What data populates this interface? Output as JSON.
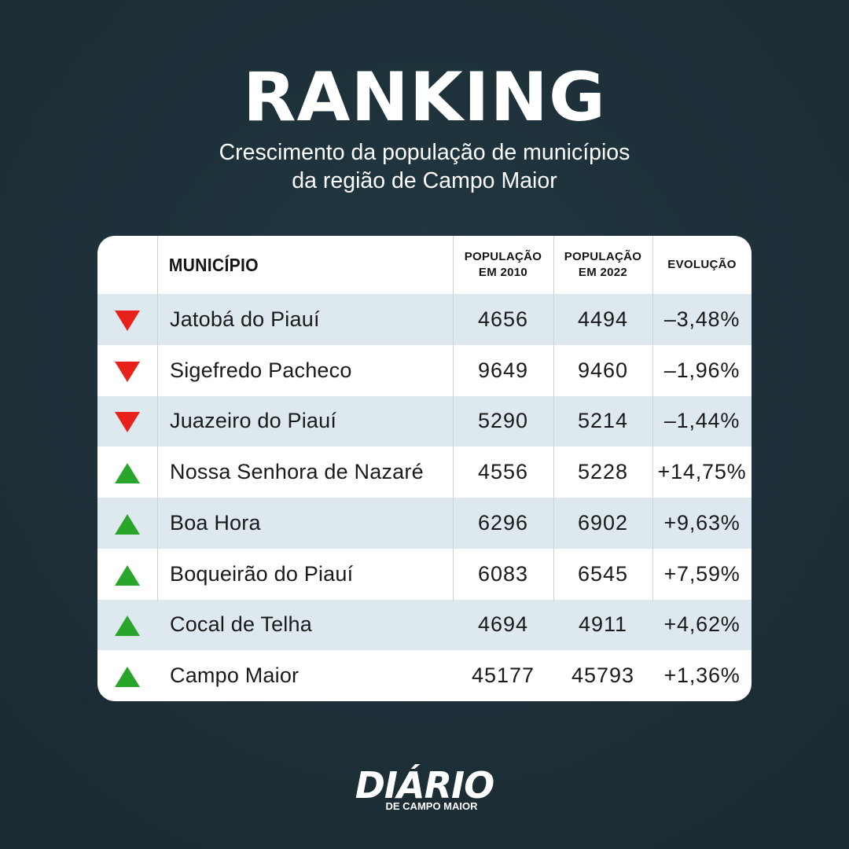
{
  "header": {
    "title": "RANKING",
    "subtitle_line1": "Crescimento da população de municípios",
    "subtitle_line2": "da região de Campo Maior"
  },
  "chart_data": {
    "type": "table",
    "title": "RANKING",
    "subtitle": "Crescimento da população de municípios da região de Campo Maior",
    "columns": {
      "municipio": "MUNICÍPIO",
      "pop2010_line1": "POPULAÇÃO",
      "pop2010_line2": "EM 2010",
      "pop2022_line1": "POPULAÇÃO",
      "pop2022_line2": "EM 2022",
      "evolucao": "EVOLUÇÃO"
    },
    "rows": [
      {
        "trend": "down",
        "municipio": "Jatobá do Piauí",
        "pop2010": "4656",
        "pop2022": "4494",
        "evolucao": "–3,48%"
      },
      {
        "trend": "down",
        "municipio": "Sigefredo Pacheco",
        "pop2010": "9649",
        "pop2022": "9460",
        "evolucao": "–1,96%"
      },
      {
        "trend": "down",
        "municipio": "Juazeiro do Piauí",
        "pop2010": "5290",
        "pop2022": "5214",
        "evolucao": "–1,44%"
      },
      {
        "trend": "up",
        "municipio": "Nossa Senhora de Nazaré",
        "pop2010": "4556",
        "pop2022": "5228",
        "evolucao": "+14,75%"
      },
      {
        "trend": "up",
        "municipio": "Boa Hora",
        "pop2010": "6296",
        "pop2022": "6902",
        "evolucao": "+9,63%"
      },
      {
        "trend": "up",
        "municipio": "Boqueirão do Piauí",
        "pop2010": "6083",
        "pop2022": "6545",
        "evolucao": "+7,59%"
      },
      {
        "trend": "up",
        "municipio": "Cocal de Telha",
        "pop2010": "4694",
        "pop2022": "4911",
        "evolucao": "+4,62%"
      },
      {
        "trend": "up",
        "municipio": "Campo Maior",
        "pop2010": "45177",
        "pop2022": "45793",
        "evolucao": "+1,36%"
      }
    ]
  },
  "colors": {
    "background": "#1e3039",
    "down_arrow": "#e8221a",
    "up_arrow": "#2aa52c",
    "row_shade": "#dde8ef"
  },
  "logo": {
    "main": "DIÁRIO",
    "sub": "DE CAMPO MAIOR"
  }
}
